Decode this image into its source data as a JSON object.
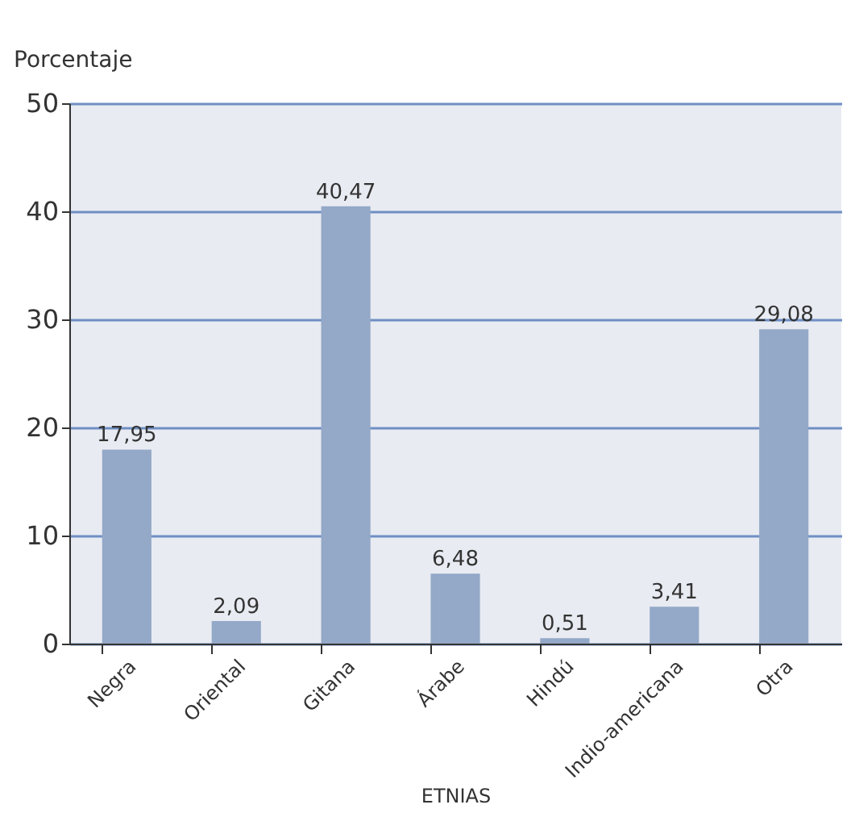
{
  "chart_data": {
    "type": "bar",
    "ylabel": "Porcentaje",
    "xlabel": "ETNIAS",
    "categories": [
      "Negra",
      "Oriental",
      "Gitana",
      "Árabe",
      "Hindú",
      "Indio-americana",
      "Otra"
    ],
    "values": [
      17.95,
      2.09,
      40.47,
      6.48,
      0.51,
      3.41,
      29.08
    ],
    "value_labels": [
      "17,95",
      "2,09",
      "40,47",
      "6,48",
      "0,51",
      "3,41",
      "29,08"
    ],
    "color": "#94a8c8",
    "ylim": [
      0,
      50
    ],
    "yticks": [
      0,
      10,
      20,
      30,
      40,
      50
    ],
    "grid": "y"
  }
}
